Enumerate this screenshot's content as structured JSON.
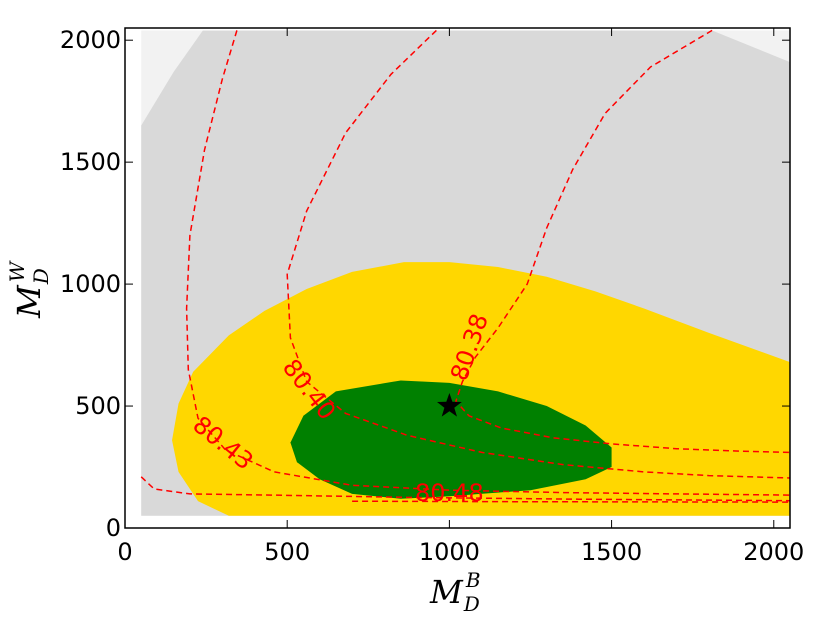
{
  "chart_data": {
    "type": "contour",
    "xlabel": {
      "main": "M",
      "sub": "D",
      "sup": "B"
    },
    "ylabel": {
      "main": "M",
      "sub": "D",
      "sup": "W"
    },
    "xlim": [
      0,
      2050
    ],
    "ylim": [
      0,
      2050
    ],
    "xticks": [
      {
        "value": 0,
        "label": "0"
      },
      {
        "value": 500,
        "label": "500"
      },
      {
        "value": 1000,
        "label": "1000"
      },
      {
        "value": 1500,
        "label": "1500"
      },
      {
        "value": 2000,
        "label": "2000"
      }
    ],
    "yticks": [
      {
        "value": 0,
        "label": "0"
      },
      {
        "value": 500,
        "label": "500"
      },
      {
        "value": 1000,
        "label": "1000"
      },
      {
        "value": 1500,
        "label": "1500"
      },
      {
        "value": 2000,
        "label": "2000"
      }
    ],
    "regions": [
      {
        "name": "light-gray-region",
        "color": "#f2f2f2",
        "points": [
          [
            50,
            50
          ],
          [
            50,
            2040
          ],
          [
            2050,
            2040
          ],
          [
            2050,
            50
          ]
        ]
      },
      {
        "name": "gray-region",
        "color": "#d9d9d9",
        "points": [
          [
            50,
            50
          ],
          [
            50,
            1650
          ],
          [
            150,
            1870
          ],
          [
            240,
            2040
          ],
          [
            1810,
            2040
          ],
          [
            2050,
            1910
          ],
          [
            2050,
            50
          ]
        ]
      },
      {
        "name": "yellow-region",
        "color": "#ffd700",
        "points": [
          [
            320,
            50
          ],
          [
            225,
            110
          ],
          [
            165,
            230
          ],
          [
            145,
            360
          ],
          [
            165,
            510
          ],
          [
            210,
            640
          ],
          [
            320,
            790
          ],
          [
            430,
            890
          ],
          [
            560,
            980
          ],
          [
            700,
            1050
          ],
          [
            860,
            1090
          ],
          [
            1000,
            1090
          ],
          [
            1150,
            1070
          ],
          [
            1300,
            1030
          ],
          [
            1450,
            970
          ],
          [
            1600,
            900
          ],
          [
            1800,
            800
          ],
          [
            2050,
            680
          ],
          [
            2050,
            50
          ]
        ]
      },
      {
        "name": "green-region",
        "color": "#008000",
        "points": [
          [
            530,
            270
          ],
          [
            510,
            350
          ],
          [
            550,
            460
          ],
          [
            650,
            560
          ],
          [
            850,
            605
          ],
          [
            1000,
            595
          ],
          [
            1150,
            560
          ],
          [
            1300,
            500
          ],
          [
            1420,
            420
          ],
          [
            1500,
            330
          ],
          [
            1500,
            250
          ],
          [
            1420,
            200
          ],
          [
            1250,
            155
          ],
          [
            1000,
            130
          ],
          [
            850,
            120
          ],
          [
            700,
            140
          ],
          [
            600,
            200
          ]
        ]
      }
    ],
    "contours": [
      {
        "label": "80.38",
        "color": "#ff0000",
        "points": [
          [
            1810,
            2040
          ],
          [
            1620,
            1890
          ],
          [
            1480,
            1700
          ],
          [
            1380,
            1470
          ],
          [
            1300,
            1230
          ],
          [
            1240,
            1000
          ],
          [
            1150,
            820
          ],
          [
            1080,
            700
          ],
          [
            1040,
            600
          ],
          [
            1020,
            520
          ],
          [
            1060,
            460
          ],
          [
            1160,
            410
          ],
          [
            1320,
            370
          ],
          [
            1500,
            345
          ],
          [
            1700,
            325
          ],
          [
            1900,
            315
          ],
          [
            2050,
            310
          ]
        ],
        "label_at": [
          1065,
          740
        ],
        "label_angle": -71
      },
      {
        "label": "80.40",
        "color": "#ff0000",
        "points": [
          [
            960,
            2040
          ],
          [
            820,
            1860
          ],
          [
            680,
            1620
          ],
          [
            560,
            1300
          ],
          [
            500,
            1040
          ],
          [
            510,
            780
          ],
          [
            560,
            600
          ],
          [
            680,
            470
          ],
          [
            870,
            380
          ],
          [
            1100,
            310
          ],
          [
            1350,
            260
          ],
          [
            1600,
            230
          ],
          [
            1800,
            215
          ],
          [
            2050,
            205
          ]
        ],
        "label_at": [
          565,
          565
        ],
        "label_angle": 52
      },
      {
        "label": "80.43",
        "color": "#ff0000",
        "points": [
          [
            345,
            2040
          ],
          [
            300,
            1840
          ],
          [
            245,
            1550
          ],
          [
            200,
            1200
          ],
          [
            190,
            900
          ],
          [
            195,
            650
          ],
          [
            225,
            450
          ],
          [
            310,
            320
          ],
          [
            460,
            230
          ],
          [
            700,
            175
          ],
          [
            1000,
            155
          ],
          [
            1350,
            145
          ],
          [
            1700,
            140
          ],
          [
            2050,
            135
          ]
        ],
        "label_at": [
          300,
          345
        ],
        "label_angle": 39
      },
      {
        "label": "80.48",
        "color": "#ff0000",
        "points": [
          [
            50,
            210
          ],
          [
            90,
            160
          ],
          [
            200,
            140
          ],
          [
            450,
            135
          ],
          [
            900,
            125
          ],
          [
            1400,
            118
          ],
          [
            2050,
            112
          ]
        ],
        "label_at": [
          1000,
          140
        ],
        "label_angle": 0
      },
      {
        "label": "",
        "color": "#ff0000",
        "points": [
          [
            700,
            110
          ],
          [
            1200,
            108
          ],
          [
            2050,
            106
          ]
        ],
        "label_at": null,
        "label_angle": 0
      }
    ],
    "markers": [
      {
        "name": "best-fit-star",
        "x": 1000,
        "y": 500,
        "symbol": "star",
        "color": "#000000"
      }
    ]
  }
}
